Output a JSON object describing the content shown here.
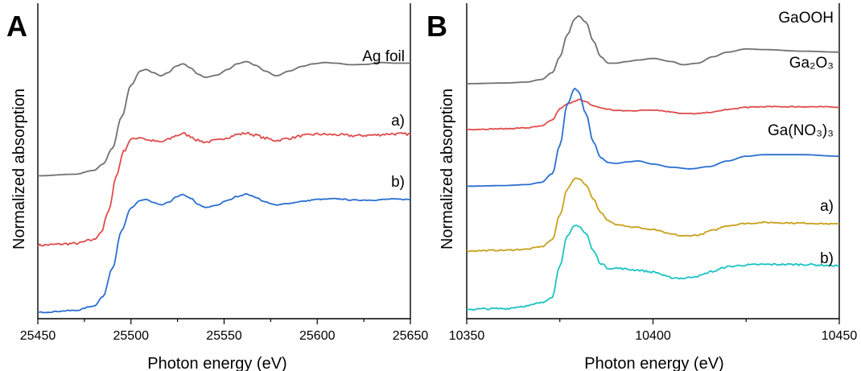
{
  "chart_data": [
    {
      "type": "line",
      "panel_label": "A",
      "xlabel": "Photon energy (eV)",
      "ylabel": "Normalized absorption",
      "xlim": [
        25450,
        25650
      ],
      "xticks": [
        25450,
        25500,
        25550,
        25600,
        25650
      ],
      "ylim": [
        0,
        1
      ],
      "yticks": false,
      "grid": false,
      "series": [
        {
          "name": "Ag foil",
          "color": "#707070",
          "noise": 0.0,
          "x": [
            25450,
            25470,
            25480,
            25485,
            25490,
            25495,
            25500,
            25505,
            25508,
            25512,
            25516,
            25520,
            25524,
            25528,
            25532,
            25536,
            25540,
            25546,
            25552,
            25557,
            25562,
            25567,
            25572,
            25578,
            25585,
            25592,
            25598,
            25604,
            25610,
            25618,
            25626,
            25634,
            25642,
            25650
          ],
          "y": [
            0.453,
            0.458,
            0.47,
            0.49,
            0.54,
            0.64,
            0.74,
            0.785,
            0.79,
            0.78,
            0.77,
            0.78,
            0.8,
            0.808,
            0.795,
            0.775,
            0.765,
            0.772,
            0.79,
            0.808,
            0.815,
            0.803,
            0.785,
            0.77,
            0.785,
            0.8,
            0.808,
            0.812,
            0.81,
            0.805,
            0.806,
            0.812,
            0.81,
            0.81
          ]
        },
        {
          "name": "a)",
          "color": "#e04c4c",
          "noise": 0.004,
          "x": [
            25450,
            25470,
            25480,
            25484,
            25488,
            25492,
            25496,
            25500,
            25505,
            25510,
            25516,
            25520,
            25524,
            25528,
            25532,
            25536,
            25540,
            25546,
            25552,
            25557,
            25562,
            25567,
            25572,
            25578,
            25585,
            25592,
            25600,
            25610,
            25620,
            25630,
            25640,
            25650
          ],
          "y": [
            0.233,
            0.238,
            0.25,
            0.275,
            0.34,
            0.45,
            0.53,
            0.568,
            0.575,
            0.565,
            0.56,
            0.568,
            0.58,
            0.587,
            0.578,
            0.565,
            0.56,
            0.565,
            0.575,
            0.584,
            0.588,
            0.582,
            0.572,
            0.565,
            0.572,
            0.58,
            0.585,
            0.583,
            0.58,
            0.582,
            0.586,
            0.585
          ]
        },
        {
          "name": "b)",
          "color": "#2a6fd0",
          "noise": 0.0015,
          "x": [
            25450,
            25470,
            25480,
            25485,
            25490,
            25495,
            25500,
            25505,
            25508,
            25512,
            25516,
            25520,
            25524,
            25528,
            25532,
            25536,
            25540,
            25546,
            25552,
            25557,
            25562,
            25567,
            25572,
            25578,
            25585,
            25592,
            25600,
            25610,
            25620,
            25630,
            25640,
            25650
          ],
          "y": [
            0.02,
            0.026,
            0.04,
            0.07,
            0.16,
            0.28,
            0.35,
            0.375,
            0.378,
            0.368,
            0.36,
            0.368,
            0.385,
            0.393,
            0.382,
            0.362,
            0.352,
            0.36,
            0.375,
            0.388,
            0.395,
            0.385,
            0.37,
            0.36,
            0.366,
            0.372,
            0.378,
            0.38,
            0.376,
            0.376,
            0.379,
            0.378
          ]
        }
      ]
    },
    {
      "type": "line",
      "panel_label": "B",
      "xlabel": "Photon energy (eV)",
      "ylabel": "Normalized absorption",
      "xlim": [
        10350,
        10450
      ],
      "xticks": [
        10350,
        10400,
        10450
      ],
      "ylim": [
        0,
        1
      ],
      "yticks": false,
      "grid": false,
      "series": [
        {
          "name": "GaOOH",
          "color": "#707070",
          "noise": 0.0,
          "x": [
            10350,
            10360,
            10366,
            10370,
            10373,
            10375,
            10377,
            10379,
            10380,
            10382,
            10384,
            10386,
            10388,
            10390,
            10393,
            10396,
            10400,
            10405,
            10408,
            10412,
            10416,
            10420,
            10425,
            10430,
            10440,
            10450
          ],
          "y": [
            0.745,
            0.747,
            0.75,
            0.758,
            0.78,
            0.83,
            0.9,
            0.95,
            0.96,
            0.94,
            0.88,
            0.83,
            0.81,
            0.81,
            0.815,
            0.82,
            0.825,
            0.815,
            0.805,
            0.81,
            0.83,
            0.845,
            0.855,
            0.853,
            0.848,
            0.845
          ]
        },
        {
          "name": "Ga₂O₃",
          "color": "#e04c4c",
          "noise": 0.0015,
          "x": [
            10350,
            10360,
            10366,
            10370,
            10373,
            10375,
            10377,
            10379,
            10380,
            10382,
            10384,
            10386,
            10388,
            10390,
            10393,
            10396,
            10400,
            10405,
            10408,
            10412,
            10416,
            10420,
            10425,
            10430,
            10440,
            10450
          ],
          "y": [
            0.6,
            0.602,
            0.605,
            0.61,
            0.63,
            0.665,
            0.68,
            0.69,
            0.695,
            0.687,
            0.675,
            0.668,
            0.664,
            0.66,
            0.659,
            0.66,
            0.662,
            0.656,
            0.65,
            0.65,
            0.655,
            0.663,
            0.67,
            0.672,
            0.672,
            0.671
          ]
        },
        {
          "name": "Ga(NO₃)₃",
          "color": "#2a6fd0",
          "noise": 0.0,
          "x": [
            10350,
            10360,
            10366,
            10370,
            10373,
            10375,
            10377,
            10379,
            10380,
            10382,
            10384,
            10386,
            10388,
            10390,
            10393,
            10396,
            10400,
            10405,
            10410,
            10415,
            10420,
            10425,
            10430,
            10440,
            10450
          ],
          "y": [
            0.42,
            0.422,
            0.425,
            0.432,
            0.46,
            0.55,
            0.68,
            0.73,
            0.72,
            0.65,
            0.56,
            0.51,
            0.495,
            0.492,
            0.497,
            0.5,
            0.49,
            0.48,
            0.475,
            0.482,
            0.5,
            0.515,
            0.52,
            0.52,
            0.515
          ]
        },
        {
          "name": "a)",
          "color": "#c8a11a",
          "noise": 0.002,
          "x": [
            10350,
            10360,
            10366,
            10370,
            10373,
            10375,
            10377,
            10379,
            10380,
            10382,
            10384,
            10386,
            10388,
            10390,
            10395,
            10400,
            10405,
            10408,
            10412,
            10416,
            10420,
            10425,
            10430,
            10440,
            10450
          ],
          "y": [
            0.215,
            0.217,
            0.22,
            0.228,
            0.25,
            0.33,
            0.41,
            0.445,
            0.445,
            0.425,
            0.38,
            0.335,
            0.31,
            0.3,
            0.29,
            0.282,
            0.268,
            0.262,
            0.265,
            0.28,
            0.295,
            0.302,
            0.305,
            0.303,
            0.3
          ]
        },
        {
          "name": "b)",
          "color": "#1cc3c3",
          "noise": 0.003,
          "x": [
            10350,
            10360,
            10366,
            10370,
            10373,
            10375,
            10377,
            10379,
            10380,
            10382,
            10384,
            10386,
            10388,
            10390,
            10395,
            10400,
            10405,
            10408,
            10412,
            10416,
            10420,
            10425,
            10430,
            10440,
            10450
          ],
          "y": [
            0.03,
            0.032,
            0.04,
            0.05,
            0.07,
            0.17,
            0.26,
            0.295,
            0.295,
            0.27,
            0.215,
            0.175,
            0.16,
            0.16,
            0.155,
            0.148,
            0.13,
            0.128,
            0.135,
            0.15,
            0.165,
            0.17,
            0.172,
            0.172,
            0.168
          ]
        }
      ]
    }
  ]
}
